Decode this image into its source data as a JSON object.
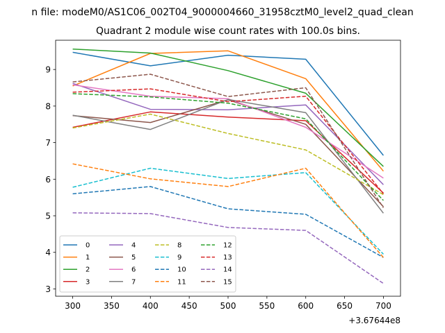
{
  "suptitle": "n file: modeM0/AS1C06_002T04_9000004660_31958cztM0_level2_quad_clean",
  "chart_data": {
    "type": "line",
    "title": "Quadrant 2 module wise count rates with 100.0s bins.",
    "xlabel": "",
    "ylabel": "",
    "x": [
      300,
      400,
      500,
      600,
      700
    ],
    "x_offset_label": "+3.67644e8",
    "xlim": [
      278,
      722
    ],
    "ylim": [
      2.8,
      9.8
    ],
    "x_ticks": [
      300,
      350,
      400,
      450,
      500,
      550,
      600,
      650,
      700
    ],
    "y_ticks": [
      3,
      4,
      5,
      6,
      7,
      8,
      9
    ],
    "grid": false,
    "legend_position": "lower-left",
    "legend_columns": 4,
    "series": [
      {
        "name": "0",
        "color": "#1f77b4",
        "dashed": false,
        "values": [
          9.47,
          9.1,
          9.39,
          9.28,
          6.65
        ]
      },
      {
        "name": "1",
        "color": "#ff7f0e",
        "dashed": false,
        "values": [
          8.55,
          9.44,
          9.51,
          8.75,
          6.22
        ]
      },
      {
        "name": "2",
        "color": "#2ca02c",
        "dashed": false,
        "values": [
          9.56,
          9.45,
          8.97,
          8.35,
          6.35
        ]
      },
      {
        "name": "3",
        "color": "#d62728",
        "dashed": false,
        "values": [
          7.42,
          7.84,
          7.7,
          7.6,
          5.62
        ]
      },
      {
        "name": "4",
        "color": "#9467bd",
        "dashed": false,
        "values": [
          8.62,
          7.91,
          7.9,
          8.03,
          5.85
        ]
      },
      {
        "name": "5",
        "color": "#8c564b",
        "dashed": false,
        "values": [
          7.74,
          7.55,
          8.17,
          7.5,
          5.25
        ]
      },
      {
        "name": "6",
        "color": "#e377c2",
        "dashed": false,
        "values": [
          8.58,
          8.27,
          8.2,
          7.42,
          6.03
        ]
      },
      {
        "name": "7",
        "color": "#7f7f7f",
        "dashed": false,
        "values": [
          7.75,
          7.36,
          8.18,
          7.82,
          5.07
        ]
      },
      {
        "name": "8",
        "color": "#bcbd22",
        "dashed": true,
        "values": [
          7.4,
          7.78,
          7.25,
          6.8,
          5.58
        ]
      },
      {
        "name": "9",
        "color": "#17becf",
        "dashed": true,
        "values": [
          5.78,
          6.3,
          6.02,
          6.18,
          3.95
        ]
      },
      {
        "name": "10",
        "color": "#1f77b4",
        "dashed": true,
        "values": [
          5.6,
          5.8,
          5.19,
          5.04,
          3.86
        ]
      },
      {
        "name": "11",
        "color": "#ff7f0e",
        "dashed": true,
        "values": [
          6.42,
          6.01,
          5.8,
          6.3,
          3.86
        ]
      },
      {
        "name": "12",
        "color": "#2ca02c",
        "dashed": true,
        "values": [
          8.34,
          8.25,
          8.08,
          7.65,
          5.42
        ]
      },
      {
        "name": "13",
        "color": "#d62728",
        "dashed": true,
        "values": [
          8.38,
          8.47,
          8.12,
          8.27,
          5.6
        ]
      },
      {
        "name": "14",
        "color": "#9467bd",
        "dashed": true,
        "values": [
          5.08,
          5.06,
          4.68,
          4.6,
          3.15
        ]
      },
      {
        "name": "15",
        "color": "#8c564b",
        "dashed": true,
        "values": [
          8.66,
          8.87,
          8.26,
          8.5,
          5.22
        ]
      }
    ]
  }
}
